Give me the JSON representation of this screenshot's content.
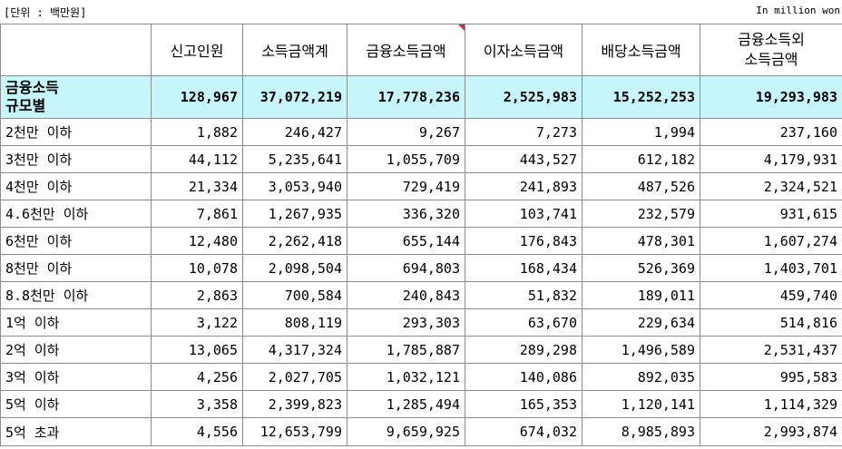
{
  "unit": {
    "left": "[단위 : 백만원]",
    "right": "In million won"
  },
  "headers": [
    "",
    "신고인원",
    "소득금액계",
    "금융소득금액",
    "이자소득금액",
    "배당소득금액",
    "금융소득외\n소득금액"
  ],
  "total": {
    "label": "금융소득\n규모별",
    "values": [
      "128,967",
      "37,072,219",
      "17,778,236",
      "2,525,983",
      "15,252,253",
      "19,293,983"
    ]
  },
  "rows": [
    {
      "label": "2천만 이하",
      "values": [
        "1,882",
        "246,427",
        "9,267",
        "7,273",
        "1,994",
        "237,160"
      ]
    },
    {
      "label": "3천만 이하",
      "values": [
        "44,112",
        "5,235,641",
        "1,055,709",
        "443,527",
        "612,182",
        "4,179,931"
      ]
    },
    {
      "label": "4천만 이하",
      "values": [
        "21,334",
        "3,053,940",
        "729,419",
        "241,893",
        "487,526",
        "2,324,521"
      ]
    },
    {
      "label": "4.6천만 이하",
      "values": [
        "7,861",
        "1,267,935",
        "336,320",
        "103,741",
        "232,579",
        "931,615"
      ]
    },
    {
      "label": "6천만 이하",
      "values": [
        "12,480",
        "2,262,418",
        "655,144",
        "176,843",
        "478,301",
        "1,607,274"
      ]
    },
    {
      "label": "8천만 이하",
      "values": [
        "10,078",
        "2,098,504",
        "694,803",
        "168,434",
        "526,369",
        "1,403,701"
      ]
    },
    {
      "label": "8.8천만 이하",
      "values": [
        "2,863",
        "700,584",
        "240,843",
        "51,832",
        "189,011",
        "459,740"
      ]
    },
    {
      "label": "1억 이하",
      "values": [
        "3,122",
        "808,119",
        "293,303",
        "63,670",
        "229,634",
        "514,816"
      ]
    },
    {
      "label": "2억 이하",
      "values": [
        "13,065",
        "4,317,324",
        "1,785,887",
        "289,298",
        "1,496,589",
        "2,531,437"
      ]
    },
    {
      "label": "3억 이하",
      "values": [
        "4,256",
        "2,027,705",
        "1,032,121",
        "140,086",
        "892,035",
        "995,583"
      ]
    },
    {
      "label": "5억 이하",
      "values": [
        "3,358",
        "2,399,823",
        "1,285,494",
        "165,353",
        "1,120,141",
        "1,114,329"
      ]
    },
    {
      "label": "5억 초과",
      "values": [
        "4,556",
        "12,653,799",
        "9,659,925",
        "674,032",
        "8,985,893",
        "2,993,874"
      ]
    }
  ],
  "colors": {
    "total_row_bg": "#c6f5fb",
    "cell_border": "#8c8c8c",
    "comment_marker": "#e0283a"
  }
}
